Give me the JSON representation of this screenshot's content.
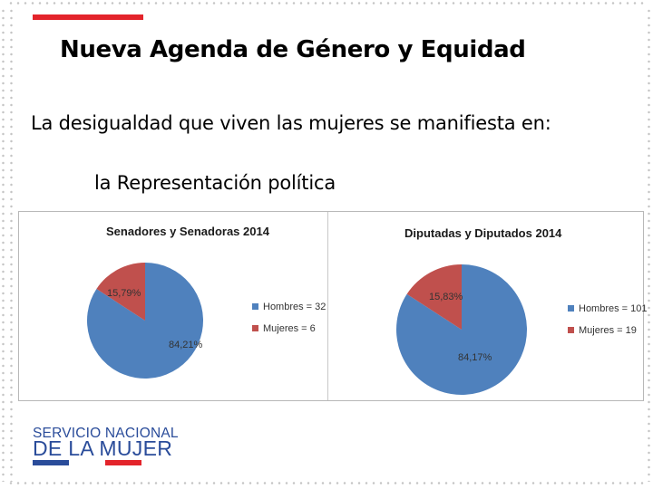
{
  "slide": {
    "title": "Nueva Agenda de Género y Equidad",
    "subtitle": "La desigualdad que viven las mujeres se manifiesta en:",
    "item": "la Representación política"
  },
  "charts_panel": {
    "senado": {
      "title": "Senadores y Senadoras 2014",
      "legend": [
        "Hombres = 32",
        "Mujeres = 6"
      ],
      "labels": [
        "84,21%",
        "15,79%"
      ]
    },
    "diputados": {
      "title": "Diputadas y Diputados 2014",
      "legend": [
        "Hombres = 101",
        "Mujeres = 19"
      ],
      "labels": [
        "84,17%",
        "15,83%"
      ]
    }
  },
  "chart_data": [
    {
      "type": "pie",
      "title": "Senadores y Senadoras 2014",
      "categories": [
        "Hombres",
        "Mujeres"
      ],
      "values": [
        32,
        6
      ],
      "percent_labels": [
        "84,21%",
        "15,79%"
      ],
      "colors": [
        "#4f81bd",
        "#c0504d"
      ],
      "legend": "right"
    },
    {
      "type": "pie",
      "title": "Diputadas y Diputados 2014",
      "categories": [
        "Hombres",
        "Mujeres"
      ],
      "values": [
        101,
        19
      ],
      "percent_labels": [
        "84,17%",
        "15,83%"
      ],
      "colors": [
        "#4f81bd",
        "#c0504d"
      ],
      "legend": "right"
    }
  ],
  "logo": {
    "line1": "SERVICIO NACIONAL",
    "line2": "DE LA MUJER",
    "colors": [
      "#2a4c9a",
      "#ffffff",
      "#e3242b"
    ]
  },
  "colors": {
    "accent": "#e3242b",
    "hombres": "#4f81bd",
    "mujeres": "#c0504d"
  }
}
